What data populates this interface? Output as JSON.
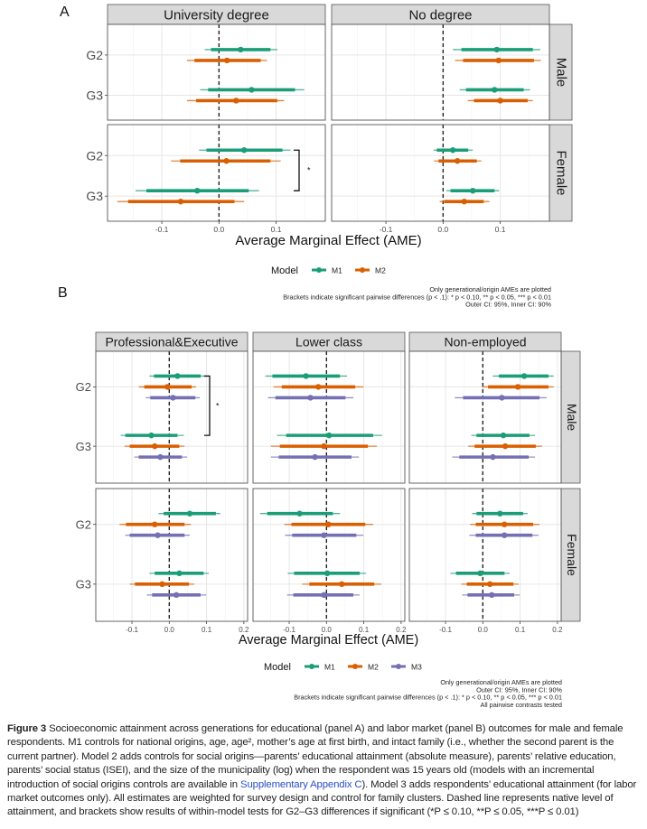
{
  "chart_data": [
    {
      "type": "forest",
      "panel_label": "A",
      "xlabel": "Average Marginal Effect (AME)",
      "xlim": [
        -0.195,
        0.186
      ],
      "xticks": [
        -0.1,
        0.0,
        0.1
      ],
      "xtick_labels": [
        "-0.1",
        "0.0",
        "0.1"
      ],
      "reference_line": 0.0,
      "columns": [
        "University degree",
        "No degree"
      ],
      "rows": [
        "Male",
        "Female"
      ],
      "categories": [
        "G2",
        "G3"
      ],
      "legend": {
        "title": "Model",
        "entries": [
          "M1",
          "M2"
        ],
        "position": "bottom"
      },
      "notes": [
        "Only generational/origin AMEs are plotted",
        "Brackets indicate significant pairwise differences (p < .1): * p < 0.10, ** p < 0.05, *** p < 0.01",
        "Outer CI: 95%, Inner CI: 90%"
      ],
      "series": [
        {
          "col": "University degree",
          "row": "Male",
          "group": "G2",
          "model": "M1",
          "estimate": 0.038,
          "ci95": [
            -0.025,
            0.102
          ],
          "ci90": [
            -0.014,
            0.09
          ]
        },
        {
          "col": "University degree",
          "row": "Male",
          "group": "G2",
          "model": "M2",
          "estimate": 0.014,
          "ci95": [
            -0.056,
            0.084
          ],
          "ci90": [
            -0.043,
            0.073
          ]
        },
        {
          "col": "University degree",
          "row": "Male",
          "group": "G3",
          "model": "M1",
          "estimate": 0.057,
          "ci95": [
            -0.033,
            0.149
          ],
          "ci90": [
            -0.019,
            0.133
          ]
        },
        {
          "col": "University degree",
          "row": "Male",
          "group": "G3",
          "model": "M2",
          "estimate": 0.03,
          "ci95": [
            -0.056,
            0.114
          ],
          "ci90": [
            -0.04,
            0.102
          ]
        },
        {
          "col": "No degree",
          "row": "Male",
          "group": "G2",
          "model": "M1",
          "estimate": 0.094,
          "ci95": [
            0.017,
            0.17
          ],
          "ci90": [
            0.032,
            0.157
          ]
        },
        {
          "col": "No degree",
          "row": "Male",
          "group": "G2",
          "model": "M2",
          "estimate": 0.097,
          "ci95": [
            0.021,
            0.171
          ],
          "ci90": [
            0.035,
            0.159
          ]
        },
        {
          "col": "No degree",
          "row": "Male",
          "group": "G3",
          "model": "M1",
          "estimate": 0.09,
          "ci95": [
            0.029,
            0.152
          ],
          "ci90": [
            0.04,
            0.141
          ]
        },
        {
          "col": "No degree",
          "row": "Male",
          "group": "G3",
          "model": "M2",
          "estimate": 0.1,
          "ci95": [
            0.043,
            0.157
          ],
          "ci90": [
            0.054,
            0.148
          ]
        },
        {
          "col": "University degree",
          "row": "Female",
          "group": "G2",
          "model": "M1",
          "estimate": 0.044,
          "ci95": [
            -0.035,
            0.125
          ],
          "ci90": [
            -0.022,
            0.111
          ]
        },
        {
          "col": "University degree",
          "row": "Female",
          "group": "G2",
          "model": "M2",
          "estimate": 0.013,
          "ci95": [
            -0.084,
            0.108
          ],
          "ci90": [
            -0.068,
            0.09
          ]
        },
        {
          "col": "University degree",
          "row": "Female",
          "group": "G3",
          "model": "M1",
          "estimate": -0.038,
          "ci95": [
            -0.146,
            0.07
          ],
          "ci90": [
            -0.127,
            0.052
          ]
        },
        {
          "col": "University degree",
          "row": "Female",
          "group": "G3",
          "model": "M2",
          "estimate": -0.067,
          "ci95": [
            -0.178,
            0.044
          ],
          "ci90": [
            -0.159,
            0.027
          ]
        },
        {
          "col": "No degree",
          "row": "Female",
          "group": "G2",
          "model": "M1",
          "estimate": 0.017,
          "ci95": [
            -0.017,
            0.052
          ],
          "ci90": [
            -0.011,
            0.044
          ]
        },
        {
          "col": "No degree",
          "row": "Female",
          "group": "G2",
          "model": "M2",
          "estimate": 0.025,
          "ci95": [
            -0.016,
            0.067
          ],
          "ci90": [
            -0.008,
            0.059
          ]
        },
        {
          "col": "No degree",
          "row": "Female",
          "group": "G3",
          "model": "M1",
          "estimate": 0.052,
          "ci95": [
            0.006,
            0.098
          ],
          "ci90": [
            0.013,
            0.09
          ]
        },
        {
          "col": "No degree",
          "row": "Female",
          "group": "G3",
          "model": "M2",
          "estimate": 0.037,
          "ci95": [
            -0.006,
            0.081
          ],
          "ci90": [
            0.002,
            0.071
          ]
        }
      ],
      "brackets": [
        {
          "col": "University degree",
          "row": "Female",
          "from": "G2 M1",
          "to": "G3 M1",
          "label": "*"
        }
      ]
    },
    {
      "type": "forest",
      "panel_label": "B",
      "xlabel": "Average Marginal Effect (AME)",
      "xlim": [
        -0.197,
        0.21
      ],
      "xticks": [
        -0.1,
        0.0,
        0.1,
        0.2
      ],
      "xtick_labels": [
        "-0.1",
        "0.0",
        "0.1",
        "0.2"
      ],
      "reference_line": 0.0,
      "columns": [
        "Professional&Executive",
        "Lower class",
        "Non-employed"
      ],
      "rows": [
        "Male",
        "Female"
      ],
      "categories": [
        "G2",
        "G3"
      ],
      "legend": {
        "title": "Model",
        "entries": [
          "M1",
          "M2",
          "M3"
        ],
        "position": "bottom"
      },
      "notes": [
        "Only generational/origin AMEs are plotted",
        "Outer CI: 95%, Inner CI: 90%",
        "Brackets indicate significant pairwise differences (p < .1): * p < 0.10, ** p < 0.05, *** p < 0.01",
        "All pairwise contrasts tested"
      ],
      "series": [
        {
          "col": "Professional&Executive",
          "row": "Male",
          "group": "G2",
          "model": "M1",
          "estimate": 0.022,
          "ci95": [
            -0.053,
            0.099
          ],
          "ci90": [
            -0.041,
            0.084
          ]
        },
        {
          "col": "Professional&Executive",
          "row": "Male",
          "group": "G2",
          "model": "M2",
          "estimate": -0.005,
          "ci95": [
            -0.082,
            0.072
          ],
          "ci90": [
            -0.067,
            0.06
          ]
        },
        {
          "col": "Professional&Executive",
          "row": "Male",
          "group": "G2",
          "model": "M3",
          "estimate": 0.01,
          "ci95": [
            -0.063,
            0.082
          ],
          "ci90": [
            -0.051,
            0.07
          ]
        },
        {
          "col": "Professional&Executive",
          "row": "Male",
          "group": "G3",
          "model": "M1",
          "estimate": -0.048,
          "ci95": [
            -0.13,
            0.039
          ],
          "ci90": [
            -0.118,
            0.022
          ]
        },
        {
          "col": "Professional&Executive",
          "row": "Male",
          "group": "G3",
          "model": "M2",
          "estimate": -0.039,
          "ci95": [
            -0.12,
            0.041
          ],
          "ci90": [
            -0.106,
            0.027
          ]
        },
        {
          "col": "Professional&Executive",
          "row": "Male",
          "group": "G3",
          "model": "M3",
          "estimate": -0.024,
          "ci95": [
            -0.094,
            0.048
          ],
          "ci90": [
            -0.082,
            0.034
          ]
        },
        {
          "col": "Lower class",
          "row": "Male",
          "group": "G2",
          "model": "M1",
          "estimate": -0.055,
          "ci95": [
            -0.164,
            0.055
          ],
          "ci90": [
            -0.145,
            0.036
          ]
        },
        {
          "col": "Lower class",
          "row": "Male",
          "group": "G2",
          "model": "M2",
          "estimate": -0.022,
          "ci95": [
            -0.142,
            0.099
          ],
          "ci90": [
            -0.12,
            0.077
          ]
        },
        {
          "col": "Lower class",
          "row": "Male",
          "group": "G2",
          "model": "M3",
          "estimate": -0.043,
          "ci95": [
            -0.157,
            0.072
          ],
          "ci90": [
            -0.137,
            0.051
          ]
        },
        {
          "col": "Lower class",
          "row": "Male",
          "group": "G3",
          "model": "M1",
          "estimate": 0.007,
          "ci95": [
            -0.133,
            0.149
          ],
          "ci90": [
            -0.108,
            0.125
          ]
        },
        {
          "col": "Lower class",
          "row": "Male",
          "group": "G3",
          "model": "M2",
          "estimate": -0.007,
          "ci95": [
            -0.149,
            0.135
          ],
          "ci90": [
            -0.125,
            0.111
          ]
        },
        {
          "col": "Lower class",
          "row": "Male",
          "group": "G3",
          "model": "M3",
          "estimate": -0.031,
          "ci95": [
            -0.149,
            0.087
          ],
          "ci90": [
            -0.128,
            0.067
          ]
        },
        {
          "col": "Non-employed",
          "row": "Male",
          "group": "G2",
          "model": "M1",
          "estimate": 0.111,
          "ci95": [
            0.027,
            0.19
          ],
          "ci90": [
            0.043,
            0.176
          ]
        },
        {
          "col": "Non-employed",
          "row": "Male",
          "group": "G2",
          "model": "M2",
          "estimate": 0.094,
          "ci95": [
            -0.002,
            0.19
          ],
          "ci90": [
            0.014,
            0.176
          ]
        },
        {
          "col": "Non-employed",
          "row": "Male",
          "group": "G2",
          "model": "M3",
          "estimate": 0.051,
          "ci95": [
            -0.075,
            0.171
          ],
          "ci90": [
            -0.053,
            0.152
          ]
        },
        {
          "col": "Non-employed",
          "row": "Male",
          "group": "G3",
          "model": "M1",
          "estimate": 0.055,
          "ci95": [
            -0.031,
            0.14
          ],
          "ci90": [
            -0.017,
            0.125
          ]
        },
        {
          "col": "Non-employed",
          "row": "Male",
          "group": "G3",
          "model": "M2",
          "estimate": 0.06,
          "ci95": [
            -0.039,
            0.159
          ],
          "ci90": [
            -0.022,
            0.142
          ]
        },
        {
          "col": "Non-employed",
          "row": "Male",
          "group": "G3",
          "model": "M3",
          "estimate": 0.027,
          "ci95": [
            -0.082,
            0.14
          ],
          "ci90": [
            -0.063,
            0.123
          ]
        },
        {
          "col": "Professional&Executive",
          "row": "Female",
          "group": "G2",
          "model": "M1",
          "estimate": 0.055,
          "ci95": [
            -0.029,
            0.137
          ],
          "ci90": [
            -0.015,
            0.125
          ]
        },
        {
          "col": "Professional&Executive",
          "row": "Female",
          "group": "G2",
          "model": "M2",
          "estimate": -0.039,
          "ci95": [
            -0.133,
            0.058
          ],
          "ci90": [
            -0.116,
            0.041
          ]
        },
        {
          "col": "Professional&Executive",
          "row": "Female",
          "group": "G2",
          "model": "M3",
          "estimate": -0.031,
          "ci95": [
            -0.118,
            0.055
          ],
          "ci90": [
            -0.106,
            0.041
          ]
        },
        {
          "col": "Professional&Executive",
          "row": "Female",
          "group": "G3",
          "model": "M1",
          "estimate": 0.027,
          "ci95": [
            -0.053,
            0.106
          ],
          "ci90": [
            -0.039,
            0.092
          ]
        },
        {
          "col": "Professional&Executive",
          "row": "Female",
          "group": "G3",
          "model": "M2",
          "estimate": -0.019,
          "ci95": [
            -0.106,
            0.067
          ],
          "ci90": [
            -0.092,
            0.053
          ]
        },
        {
          "col": "Professional&Executive",
          "row": "Female",
          "group": "G3",
          "model": "M3",
          "estimate": 0.019,
          "ci95": [
            -0.06,
            0.099
          ],
          "ci90": [
            -0.046,
            0.084
          ]
        },
        {
          "col": "Lower class",
          "row": "Female",
          "group": "G2",
          "model": "M1",
          "estimate": -0.072,
          "ci95": [
            -0.178,
            0.036
          ],
          "ci90": [
            -0.159,
            0.017
          ]
        },
        {
          "col": "Lower class",
          "row": "Female",
          "group": "G2",
          "model": "M2",
          "estimate": 0.005,
          "ci95": [
            -0.113,
            0.125
          ],
          "ci90": [
            -0.094,
            0.104
          ]
        },
        {
          "col": "Lower class",
          "row": "Female",
          "group": "G2",
          "model": "M3",
          "estimate": -0.007,
          "ci95": [
            -0.111,
            0.099
          ],
          "ci90": [
            -0.092,
            0.08
          ]
        },
        {
          "col": "Lower class",
          "row": "Female",
          "group": "G3",
          "model": "M1",
          "estimate": 0.002,
          "ci95": [
            -0.104,
            0.106
          ],
          "ci90": [
            -0.087,
            0.089
          ]
        },
        {
          "col": "Lower class",
          "row": "Female",
          "group": "G3",
          "model": "M2",
          "estimate": 0.041,
          "ci95": [
            -0.065,
            0.147
          ],
          "ci90": [
            -0.046,
            0.128
          ]
        },
        {
          "col": "Lower class",
          "row": "Female",
          "group": "G3",
          "model": "M3",
          "estimate": -0.007,
          "ci95": [
            -0.106,
            0.089
          ],
          "ci90": [
            -0.089,
            0.072
          ]
        },
        {
          "col": "Non-employed",
          "row": "Female",
          "group": "G2",
          "model": "M1",
          "estimate": 0.046,
          "ci95": [
            -0.029,
            0.12
          ],
          "ci90": [
            -0.017,
            0.108
          ]
        },
        {
          "col": "Non-employed",
          "row": "Female",
          "group": "G2",
          "model": "M2",
          "estimate": 0.058,
          "ci95": [
            -0.034,
            0.152
          ],
          "ci90": [
            -0.019,
            0.135
          ]
        },
        {
          "col": "Non-employed",
          "row": "Female",
          "group": "G2",
          "model": "M3",
          "estimate": 0.058,
          "ci95": [
            -0.036,
            0.149
          ],
          "ci90": [
            -0.019,
            0.133
          ]
        },
        {
          "col": "Non-employed",
          "row": "Female",
          "group": "G3",
          "model": "M1",
          "estimate": -0.007,
          "ci95": [
            -0.087,
            0.072
          ],
          "ci90": [
            -0.072,
            0.058
          ]
        },
        {
          "col": "Non-employed",
          "row": "Female",
          "group": "G3",
          "model": "M2",
          "estimate": 0.019,
          "ci95": [
            -0.058,
            0.096
          ],
          "ci90": [
            -0.043,
            0.082
          ]
        },
        {
          "col": "Non-employed",
          "row": "Female",
          "group": "G3",
          "model": "M3",
          "estimate": 0.024,
          "ci95": [
            -0.055,
            0.099
          ],
          "ci90": [
            -0.041,
            0.084
          ]
        }
      ],
      "brackets": [
        {
          "col": "Professional&Executive",
          "row": "Male",
          "from": "G2 M1",
          "to": "G3 M1",
          "label": "*"
        }
      ]
    }
  ],
  "colors": {
    "M1": "#1b9e77",
    "M2": "#d95f02",
    "M3": "#7570b3",
    "strip": "#d9d9d9",
    "grid": "#ebebeb"
  },
  "caption": {
    "label": "Figure 3",
    "text_before_link": "Socioeconomic attainment across generations for educational (panel A) and labor market (panel B) outcomes for male and female respondents. M1 controls for national origins, age, age², mother’s age at first birth, and intact family (i.e., whether the second parent is the current partner). Model 2 adds controls for social origins—parents’ educational attainment (absolute measure), parents’ relative education, parents’ social status (ISEI), and the size of the municipality (log) when the respondent was 15 years old (models with an incremental introduction of social origins controls are available in ",
    "link": "Supplementary Appendix C",
    "text_after_link": "). Model 3 adds respondents’ educational attainment (for labor market outcomes only). All estimates are weighted for survey design and control for family clusters. Dashed line represents native level of attainment, and brackets show results of within-model tests for G2–G3 differences if significant (*P ≤ 0.10, **P ≤ 0.05, ***P ≤ 0.01)"
  }
}
